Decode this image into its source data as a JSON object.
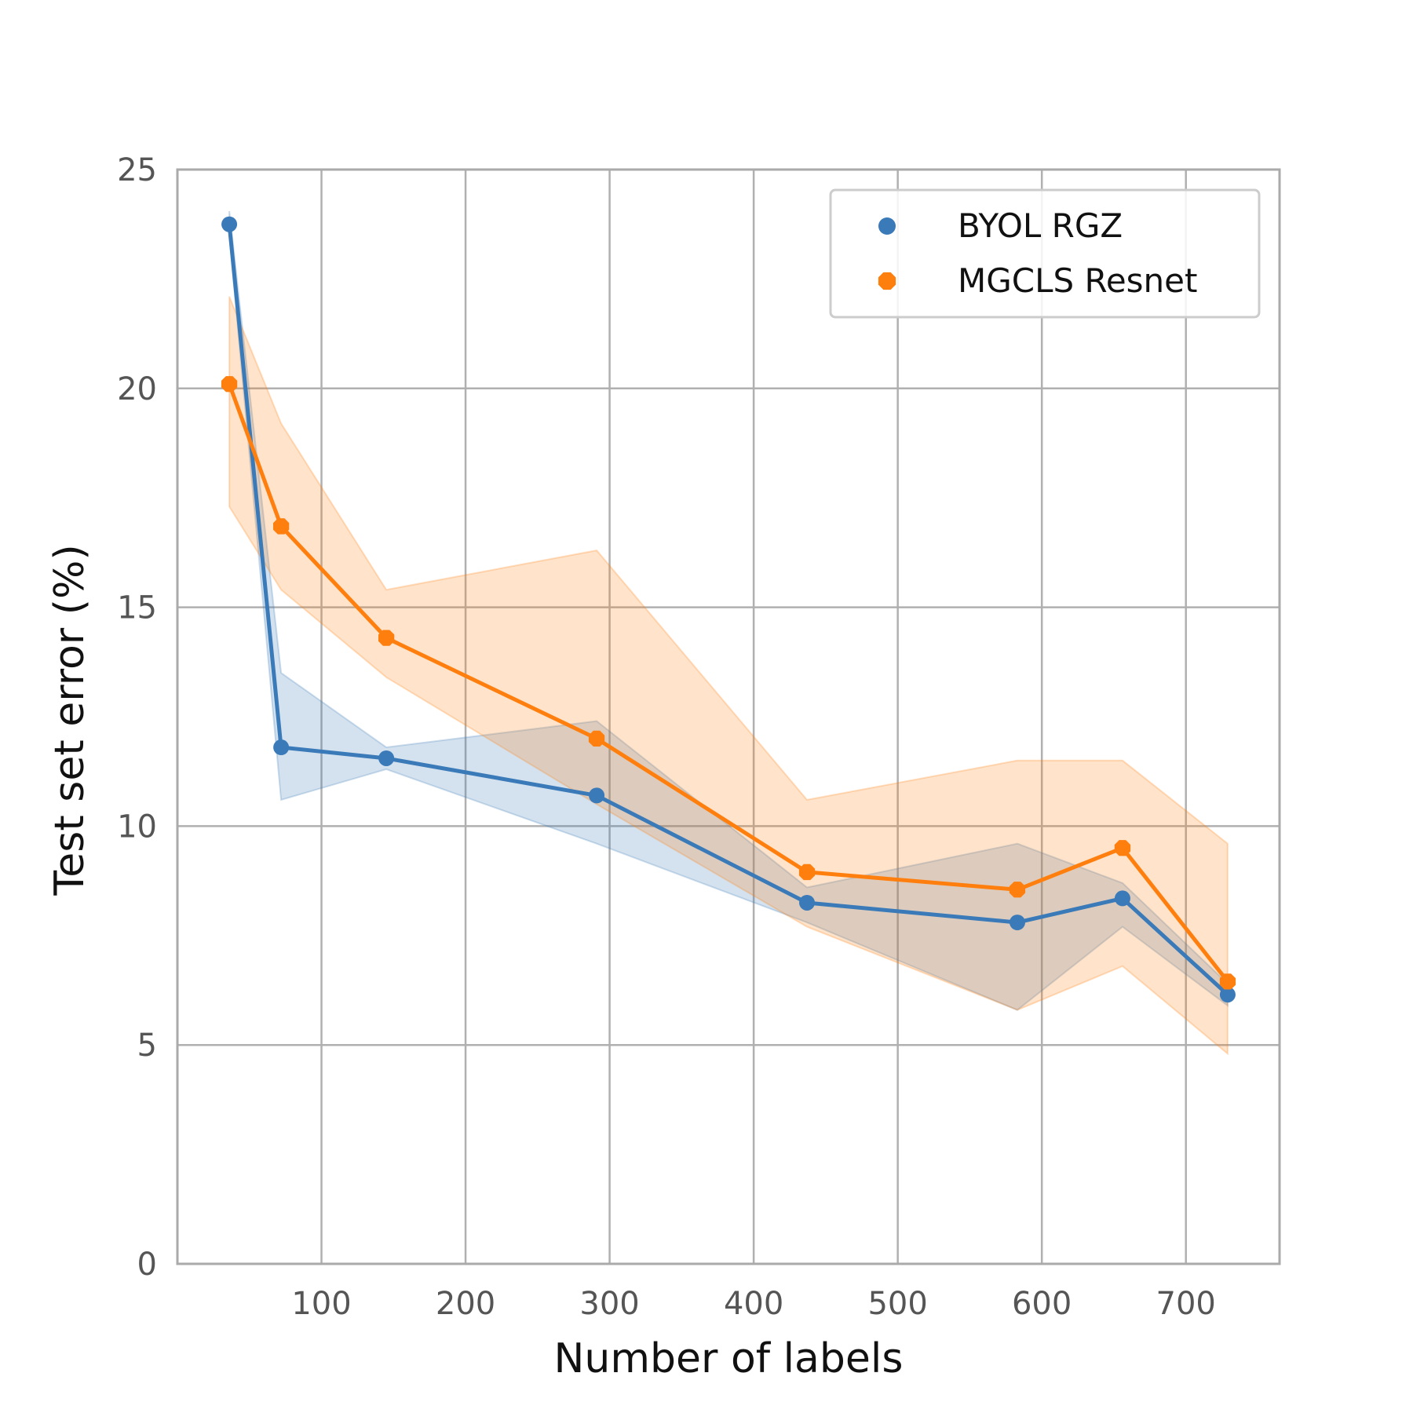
{
  "chart_data": {
    "type": "line",
    "title": "",
    "xlabel": "Number of labels",
    "ylabel": "Test set error (%)",
    "xlim": [
      0,
      765
    ],
    "ylim": [
      0,
      25
    ],
    "xticks": [
      100,
      200,
      300,
      400,
      500,
      600,
      700
    ],
    "yticks": [
      0,
      5,
      10,
      15,
      20,
      25
    ],
    "grid": true,
    "legend_position": "top-right",
    "series": [
      {
        "name": "BYOL RGZ",
        "color": "#3a7ab8",
        "marker": "circle",
        "x": [
          36,
          72,
          145,
          291,
          437,
          583,
          656,
          729
        ],
        "y": [
          23.75,
          11.8,
          11.55,
          10.7,
          8.25,
          7.8,
          8.35,
          6.15
        ],
        "lower": [
          23.5,
          10.6,
          11.3,
          9.6,
          7.8,
          5.8,
          7.7,
          5.9
        ],
        "upper": [
          24.05,
          13.5,
          11.8,
          12.4,
          8.6,
          9.6,
          8.7,
          6.4
        ]
      },
      {
        "name": "MGCLS Resnet",
        "color": "#ff7f0e",
        "marker": "octagon",
        "x": [
          36,
          72,
          145,
          291,
          437,
          583,
          656,
          729
        ],
        "y": [
          20.1,
          16.85,
          14.3,
          12.0,
          8.95,
          8.55,
          9.5,
          6.45
        ],
        "lower": [
          17.3,
          15.4,
          13.4,
          10.5,
          7.7,
          5.8,
          6.8,
          4.8
        ],
        "upper": [
          22.1,
          19.2,
          15.4,
          16.3,
          10.6,
          11.5,
          11.5,
          9.6
        ]
      }
    ]
  }
}
